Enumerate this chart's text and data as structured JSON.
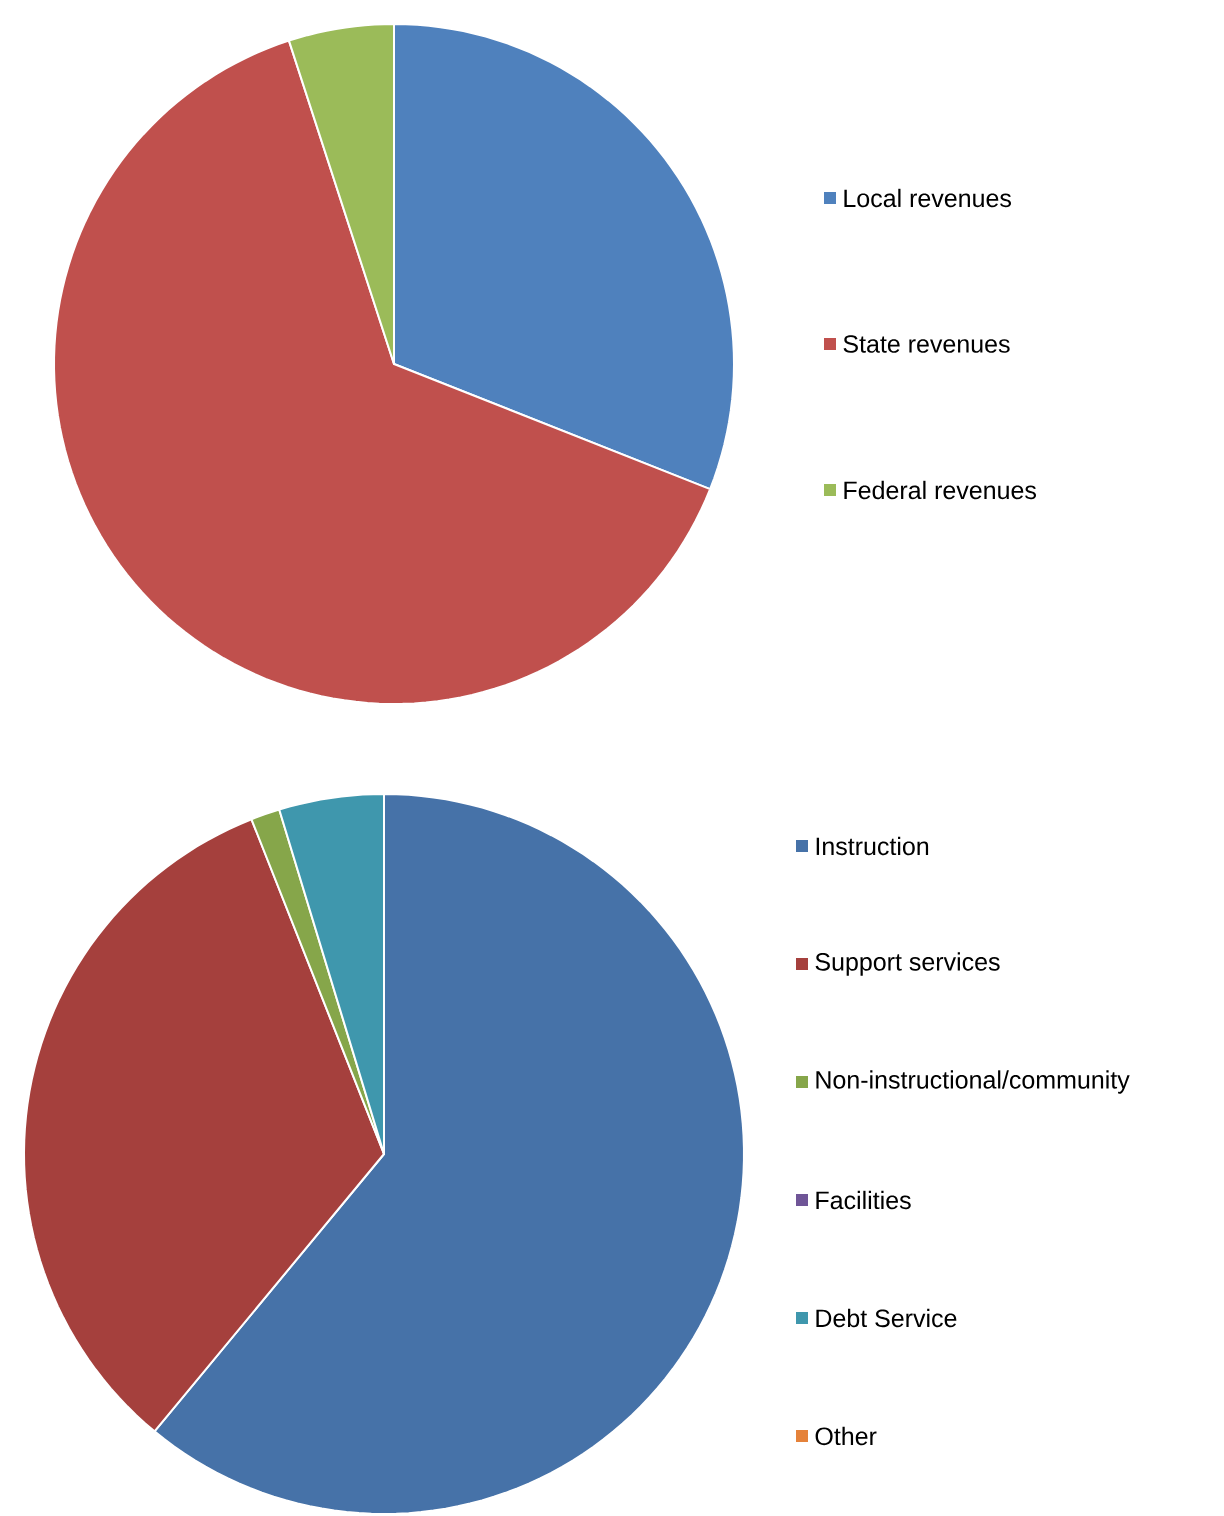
{
  "chart_data": [
    {
      "type": "pie",
      "categories": [
        "Local revenues",
        "State revenues",
        "Federal revenues"
      ],
      "values": [
        31,
        64,
        5
      ],
      "colors": [
        "#4f81bd",
        "#c0504d",
        "#9bbb59"
      ],
      "legend": "right"
    },
    {
      "type": "pie",
      "categories": [
        "Instruction",
        "Support services",
        "Non-instructional/community",
        "Facilities",
        "Debt Service",
        "Other"
      ],
      "values": [
        61,
        33,
        1.3,
        0,
        4.7,
        0
      ],
      "colors": [
        "#4672a8",
        "#a5403d",
        "#86a64a",
        "#6f5597",
        "#3f97ad",
        "#e5823a"
      ],
      "legend": "right"
    }
  ]
}
